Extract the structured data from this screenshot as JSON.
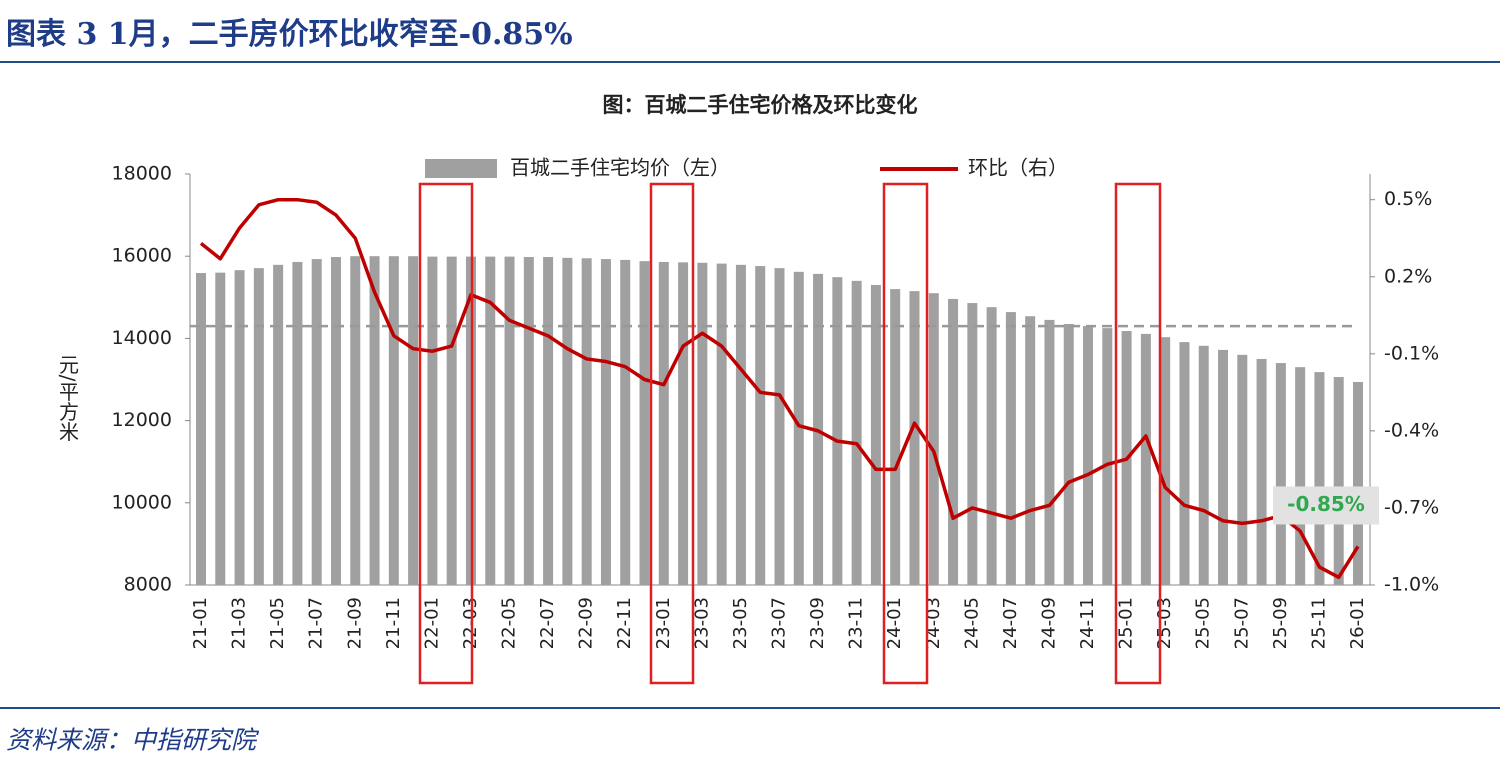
{
  "header": {
    "title": "图表 3   1月，二手房价环比收窄至-0.85%"
  },
  "source": "资料来源：中指研究院",
  "chart_data": {
    "type": "bar-line",
    "title": "图：百城二手住宅价格及环比变化",
    "y_label": "元/平方米",
    "categories": [
      "21-01",
      null,
      "21-03",
      null,
      "21-05",
      null,
      "21-07",
      null,
      "21-09",
      null,
      "21-11",
      null,
      "22-01",
      null,
      "22-03",
      null,
      "22-05",
      null,
      "22-07",
      null,
      "22-09",
      null,
      "22-11",
      null,
      "23-01",
      null,
      "23-03",
      null,
      "23-05",
      null,
      "23-07",
      null,
      "23-09",
      null,
      "23-11",
      null,
      "24-01",
      null,
      "24-03",
      null,
      "24-05",
      null,
      "24-07",
      null,
      "24-09",
      null,
      "24-11",
      null,
      "25-01",
      null,
      "25-03",
      null,
      "25-05",
      null,
      "25-07",
      null,
      "25-09",
      null,
      "25-11",
      null,
      "26-01"
    ],
    "series": [
      {
        "name": "百城二手住宅均价（左）",
        "color": "#a0a0a0",
        "axis": "y",
        "values": [
          15590,
          15600,
          15660,
          15710,
          15790,
          15860,
          15930,
          15980,
          16000,
          16000,
          16000,
          16000,
          15990,
          15990,
          15990,
          15990,
          15990,
          15980,
          15980,
          15960,
          15950,
          15930,
          15910,
          15880,
          15860,
          15850,
          15840,
          15820,
          15790,
          15760,
          15710,
          15620,
          15570,
          15490,
          15400,
          15300,
          15200,
          15150,
          15100,
          14960,
          14860,
          14760,
          14640,
          14540,
          14450,
          14350,
          14300,
          14250,
          14180,
          14110,
          14030,
          13910,
          13820,
          13720,
          13600,
          13500,
          13400,
          13300,
          13180,
          13060,
          12940
        ]
      },
      {
        "name": "环比（右）",
        "color": "#c00000",
        "axis": "y2",
        "values": [
          0.33,
          0.27,
          0.39,
          0.48,
          0.5,
          0.5,
          0.49,
          0.44,
          0.35,
          0.14,
          -0.03,
          -0.08,
          -0.09,
          -0.07,
          0.13,
          0.1,
          0.03,
          0.0,
          -0.03,
          -0.08,
          -0.12,
          -0.13,
          -0.15,
          -0.2,
          -0.22,
          -0.07,
          -0.02,
          -0.07,
          -0.16,
          -0.25,
          -0.26,
          -0.38,
          -0.4,
          -0.44,
          -0.45,
          -0.55,
          -0.55,
          -0.37,
          -0.48,
          -0.74,
          -0.7,
          -0.72,
          -0.74,
          -0.71,
          -0.69,
          -0.6,
          -0.57,
          -0.53,
          -0.51,
          -0.42,
          -0.62,
          -0.69,
          -0.71,
          -0.75,
          -0.76,
          -0.75,
          -0.73,
          -0.79,
          -0.93,
          -0.97,
          -0.85
        ],
        "value_labels": [
          null,
          null,
          null,
          null,
          null,
          null,
          null,
          null,
          null,
          null,
          null,
          null,
          null,
          null,
          null,
          null,
          null,
          null,
          null,
          null,
          null,
          null,
          null,
          null,
          null,
          null,
          null,
          null,
          null,
          null,
          null,
          null,
          null,
          null,
          null,
          null,
          null,
          null,
          null,
          null,
          null,
          null,
          null,
          null,
          null,
          null,
          null,
          null,
          null,
          null,
          null,
          null,
          null,
          null,
          null,
          null,
          null,
          null,
          null,
          null,
          "-0.85%"
        ]
      }
    ],
    "reference_line": 14300,
    "ylim": [
      8000,
      18000
    ],
    "yticks": [
      8000,
      10000,
      12000,
      14000,
      16000,
      18000
    ],
    "y2lim": [
      -1.0,
      0.6
    ],
    "y2ticks": [
      {
        "value": -1.0,
        "label": "-1.0%"
      },
      {
        "value": -0.7,
        "label": "-0.7%"
      },
      {
        "value": -0.4,
        "label": "-0.4%"
      },
      {
        "value": -0.1,
        "label": "-0.1%"
      },
      {
        "value": 0.2,
        "label": "0.2%"
      },
      {
        "value": 0.5,
        "label": "0.5%"
      }
    ]
  }
}
